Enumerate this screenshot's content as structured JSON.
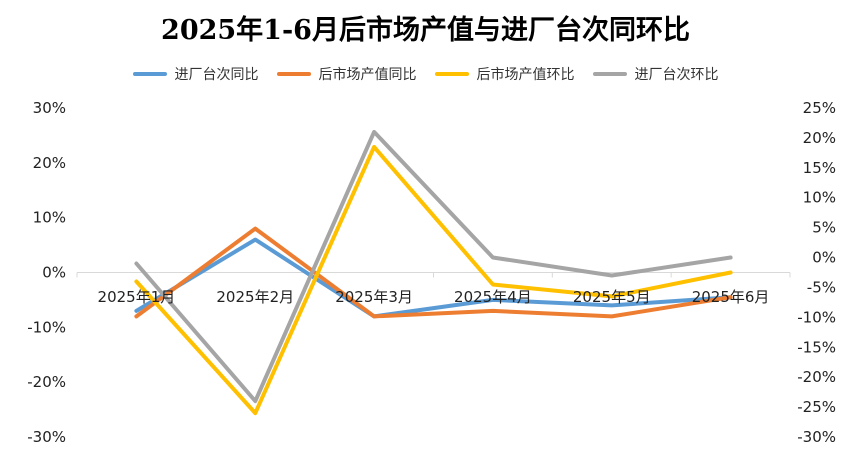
{
  "chart_data": {
    "type": "line",
    "title": "2025年1-6月后市场产值与进厂台次同环比",
    "categories": [
      "2025年1月",
      "2025年2月",
      "2025年3月",
      "2025年4月",
      "2025年5月",
      "2025年6月"
    ],
    "series": [
      {
        "name": "进厂台次同比",
        "axis": "left",
        "color": "#5B9BD5",
        "values": [
          -7,
          6,
          -8,
          -5,
          -6,
          -4.5
        ]
      },
      {
        "name": "后市场产值同比",
        "axis": "left",
        "color": "#ED7D31",
        "values": [
          -8,
          8,
          -8,
          -7,
          -8,
          -4.5
        ]
      },
      {
        "name": "后市场产值环比",
        "axis": "right",
        "color": "#FFC000",
        "values": [
          -4,
          -26,
          18.5,
          -4.5,
          -6.5,
          -2.5
        ]
      },
      {
        "name": "进厂台次环比",
        "axis": "right",
        "color": "#A5A5A5",
        "values": [
          -1,
          -24,
          21,
          0,
          -3,
          0
        ]
      }
    ],
    "left_axis": {
      "min": -30,
      "max": 30,
      "step": 10,
      "ticks": [
        "30%",
        "20%",
        "10%",
        "0%",
        "-10%",
        "-20%",
        "-30%"
      ]
    },
    "right_axis": {
      "min": -30,
      "max": 25,
      "step": 5,
      "ticks": [
        "25%",
        "20%",
        "15%",
        "10%",
        "5%",
        "0%",
        "-5%",
        "-10%",
        "-15%",
        "-20%",
        "-25%",
        "-30%"
      ]
    },
    "legend_position": "top",
    "grid": false
  }
}
